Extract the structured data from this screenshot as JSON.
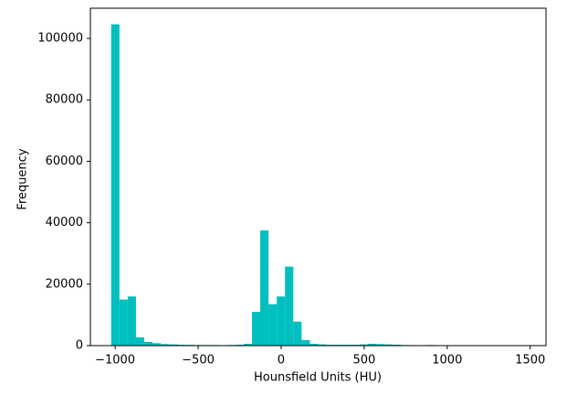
{
  "chart_data": {
    "type": "histogram",
    "xlabel": "Hounsfield Units (HU)",
    "ylabel": "Frequency",
    "color": "#00bfbf",
    "bins": [
      -1024,
      -974.12,
      -924.24,
      -874.36,
      -824.48,
      -774.6,
      -724.72,
      -674.84,
      -624.96,
      -575.08,
      -525.2,
      -475.32,
      -425.44,
      -375.56,
      -325.68,
      -275.8,
      -225.92,
      -176.04,
      -126.16,
      -76.28,
      -26.4,
      23.48,
      73.36,
      123.24,
      173.12,
      223,
      272.88,
      322.76,
      372.64,
      422.52,
      472.4,
      522.28,
      572.16,
      622.04,
      671.92,
      721.8,
      771.68,
      821.56,
      871.44,
      921.32,
      971.2,
      1021.08,
      1070.96,
      1120.84,
      1170.72,
      1220.6,
      1270.48,
      1320.36,
      1370.24,
      1420.12,
      1470
    ],
    "counts": [
      104600,
      15000,
      16000,
      2700,
      1200,
      800,
      500,
      400,
      300,
      250,
      200,
      200,
      200,
      150,
      200,
      300,
      600,
      11000,
      37500,
      13500,
      16000,
      25700,
      7800,
      1800,
      600,
      400,
      300,
      300,
      300,
      300,
      400,
      600,
      500,
      400,
      300,
      200,
      150,
      100,
      200,
      80,
      60,
      50,
      40,
      30,
      20,
      20,
      20,
      10,
      10,
      10
    ],
    "xlim": [
      -1149,
      1595
    ],
    "ylim": [
      0,
      109830
    ],
    "xticks": [
      {
        "value": -1000,
        "label": "−1000"
      },
      {
        "value": -500,
        "label": "−500"
      },
      0,
      500,
      1000,
      1500
    ],
    "yticks": [
      0,
      20000,
      40000,
      60000,
      80000,
      100000
    ]
  }
}
